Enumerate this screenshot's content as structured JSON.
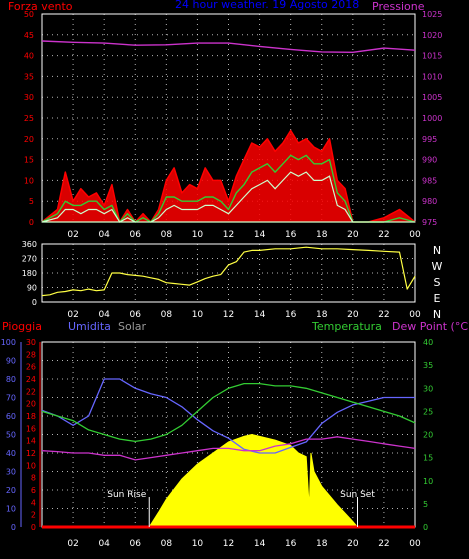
{
  "colors": {
    "background": "#000000",
    "frame": "#ffffff",
    "grid": "#ffffff",
    "pressure": "#cc33cc",
    "wind_gust": "#ff0000",
    "wind_avg": "#33cc33",
    "wind_min": "#ccffcc",
    "wind_dir": "#ffff44",
    "rain": "#ff0000",
    "humidity": "#6666ff",
    "solar": "#ffff00",
    "temperature": "#33cc33",
    "dew_point": "#cc33cc",
    "left_axis_red": "#ff0000",
    "left_axis_blue": "#6666ff",
    "right_axis_green": "#33cc33",
    "right_axis_purple": "#cc33cc",
    "top_label": "#0000ff",
    "solar_label": "#999999"
  },
  "chart_data": [
    {
      "type": "line",
      "title": "24 hour weather 19 Agosto 2018",
      "title_display": "24 hour weather. 19 Agosto 2018",
      "left_label": "Forza vento",
      "right_label": "Pressione",
      "x_ticks": [
        "02",
        "04",
        "06",
        "08",
        "10",
        "12",
        "14",
        "16",
        "18",
        "20",
        "22",
        "00"
      ],
      "x_range": [
        0,
        24
      ],
      "left_ylim": [
        0,
        50
      ],
      "left_ticks": [
        0,
        5,
        10,
        15,
        20,
        25,
        30,
        35,
        40,
        45,
        50
      ],
      "right_ylim": [
        975,
        1025
      ],
      "right_ticks": [
        975,
        980,
        985,
        990,
        995,
        1000,
        1005,
        1010,
        1015,
        1020,
        1025
      ],
      "grid": true,
      "series": [
        {
          "key": "gust",
          "axis": "left",
          "x": [
            0,
            1,
            1.5,
            2,
            2.5,
            3,
            3.5,
            4,
            4.5,
            5,
            5.5,
            6,
            6.5,
            7,
            7.5,
            8,
            8.5,
            9,
            9.5,
            10,
            10.5,
            11,
            11.5,
            12,
            12.5,
            13,
            13.5,
            14,
            14.5,
            15,
            15.5,
            16,
            16.5,
            17,
            17.5,
            18,
            18.5,
            19,
            19.5,
            20,
            21,
            22,
            23,
            24
          ],
          "y": [
            0,
            3,
            12,
            5,
            8,
            6,
            7,
            4,
            9,
            0,
            3,
            0,
            2,
            0,
            3,
            10,
            13,
            7,
            9,
            8,
            13,
            10,
            10,
            5,
            11,
            15,
            19,
            18,
            20,
            17,
            19,
            22,
            19,
            20,
            18,
            17,
            20,
            10,
            8,
            0,
            0,
            1,
            3,
            0
          ]
        },
        {
          "key": "avg",
          "axis": "left",
          "x": [
            0,
            1,
            1.5,
            2,
            2.5,
            3,
            3.5,
            4,
            4.5,
            5,
            5.5,
            6,
            6.5,
            7,
            7.5,
            8,
            8.5,
            9,
            9.5,
            10,
            10.5,
            11,
            11.5,
            12,
            12.5,
            13,
            13.5,
            14,
            14.5,
            15,
            15.5,
            16,
            16.5,
            17,
            17.5,
            18,
            18.5,
            19,
            19.5,
            20,
            21,
            22,
            23,
            24
          ],
          "y": [
            0,
            2,
            5,
            4,
            4,
            5,
            5,
            3,
            4,
            0,
            2,
            0,
            1,
            0,
            2,
            6,
            6,
            5,
            5,
            5,
            6,
            6,
            5,
            3,
            7,
            9,
            12,
            13,
            14,
            12,
            14,
            16,
            15,
            16,
            14,
            14,
            15,
            7,
            5,
            0,
            0,
            0,
            1,
            0
          ]
        },
        {
          "key": "min",
          "axis": "left",
          "x": [
            0,
            1,
            1.5,
            2,
            2.5,
            3,
            3.5,
            4,
            4.5,
            5,
            5.5,
            6,
            6.5,
            7,
            7.5,
            8,
            8.5,
            9,
            9.5,
            10,
            10.5,
            11,
            11.5,
            12,
            12.5,
            13,
            13.5,
            14,
            14.5,
            15,
            15.5,
            16,
            16.5,
            17,
            17.5,
            18,
            18.5,
            19,
            19.5,
            20,
            21,
            22,
            23,
            24
          ],
          "y": [
            0,
            1,
            3,
            3,
            2,
            3,
            3,
            2,
            3,
            0,
            1,
            0,
            0,
            0,
            1,
            3,
            4,
            3,
            3,
            3,
            4,
            4,
            3,
            2,
            4,
            6,
            8,
            9,
            10,
            8,
            10,
            12,
            11,
            12,
            10,
            10,
            11,
            4,
            3,
            0,
            0,
            0,
            0,
            0
          ]
        },
        {
          "key": "pressure",
          "axis": "right",
          "x": [
            0,
            2,
            4,
            6,
            8,
            10,
            12,
            14,
            16,
            18,
            20,
            22,
            24
          ],
          "y": [
            1018.5,
            1018.2,
            1018,
            1017.5,
            1017.6,
            1018,
            1018,
            1017.2,
            1016.5,
            1015.9,
            1015.8,
            1016.8,
            1016.3
          ]
        }
      ]
    },
    {
      "type": "scatter",
      "title": "",
      "x_ticks": [
        "02",
        "04",
        "06",
        "08",
        "10",
        "12",
        "14",
        "16",
        "18",
        "20",
        "22",
        "00"
      ],
      "x_range": [
        0,
        24
      ],
      "ylim": [
        0,
        360
      ],
      "y_ticks": [
        0,
        90,
        180,
        270,
        360
      ],
      "compass": [
        "N",
        "W",
        "S",
        "E",
        "N"
      ],
      "grid": true,
      "series": [
        {
          "key": "direction",
          "x": [
            0,
            0.5,
            1,
            1.5,
            2,
            2.5,
            3,
            3.5,
            4,
            4.5,
            5,
            5.5,
            6,
            6.5,
            7,
            7.5,
            8,
            8.5,
            9,
            9.5,
            10,
            10.5,
            11,
            11.5,
            12,
            12.5,
            13,
            13.5,
            14,
            15,
            16,
            17,
            18,
            19,
            20,
            21,
            22,
            23,
            23.5,
            24
          ],
          "y": [
            40,
            45,
            60,
            65,
            75,
            70,
            80,
            70,
            75,
            180,
            180,
            170,
            165,
            160,
            150,
            140,
            120,
            115,
            110,
            105,
            125,
            145,
            160,
            170,
            230,
            250,
            310,
            320,
            320,
            330,
            330,
            340,
            330,
            330,
            325,
            320,
            315,
            310,
            80,
            160
          ]
        }
      ]
    },
    {
      "type": "area",
      "title": "",
      "labels": {
        "rain": "Pioggia",
        "humidity": "Umidita",
        "solar": "Solar",
        "temperature": "Temperatura",
        "dew": "Dew Point (°C)",
        "sunrise": "Sun Rise",
        "sunset": "Sun Set"
      },
      "x_ticks": [
        "02",
        "04",
        "06",
        "08",
        "10",
        "12",
        "14",
        "16",
        "18",
        "20",
        "22",
        "00"
      ],
      "x_range": [
        0,
        24
      ],
      "left_red_ticks": [
        0,
        2,
        4,
        6,
        8,
        10,
        12,
        14,
        16,
        18,
        20,
        22,
        24,
        26,
        28,
        30
      ],
      "left_red_ylim": [
        0,
        30
      ],
      "left_blue_ticks": [
        0,
        10,
        20,
        30,
        40,
        50,
        60,
        70,
        80,
        90,
        100
      ],
      "left_blue_ylim": [
        0,
        100
      ],
      "right_ticks": [
        0,
        5,
        10,
        15,
        20,
        25,
        30,
        35,
        40
      ],
      "right_ylim": [
        0,
        40
      ],
      "sunrise_x": 6.9,
      "sunset_x": 20.3,
      "grid": true,
      "series": [
        {
          "key": "rain",
          "axis": "left_red",
          "x": [
            0,
            24
          ],
          "y": [
            0,
            0
          ]
        },
        {
          "key": "humidity",
          "axis": "left_blue",
          "x": [
            0,
            1,
            2,
            3,
            4,
            5,
            6,
            7,
            8,
            9,
            10,
            11,
            12,
            13,
            14,
            15,
            16,
            17,
            18,
            19,
            20,
            21,
            22,
            23,
            24
          ],
          "y": [
            63,
            60,
            55,
            60,
            80,
            80,
            75,
            72,
            70,
            65,
            58,
            52,
            48,
            42,
            40,
            40,
            43,
            46,
            56,
            62,
            66,
            68,
            70,
            70,
            70
          ]
        },
        {
          "key": "solar",
          "axis": "left_blue",
          "x": [
            6.9,
            7.5,
            8,
            9,
            10,
            11,
            12,
            13,
            13.5,
            14,
            15,
            16,
            16.5,
            17,
            17.2,
            17.3,
            17.5,
            18,
            19,
            20,
            20.3
          ],
          "y": [
            0,
            8,
            15,
            26,
            34,
            40,
            46,
            49,
            50,
            49,
            47,
            44,
            40,
            38,
            10,
            40,
            30,
            22,
            12,
            3,
            0
          ]
        },
        {
          "key": "temperature",
          "axis": "right",
          "x": [
            0,
            1,
            2,
            3,
            4,
            5,
            6,
            7,
            8,
            9,
            10,
            11,
            12,
            13,
            14,
            15,
            16,
            17,
            18,
            19,
            20,
            21,
            22,
            23,
            24
          ],
          "y": [
            25,
            24,
            23,
            21,
            20,
            19,
            18.5,
            19,
            20,
            22,
            25,
            28,
            30,
            31,
            31,
            30.5,
            30.5,
            30,
            29,
            28,
            27,
            26,
            25,
            24,
            22.5
          ]
        },
        {
          "key": "dew",
          "axis": "right",
          "x": [
            0,
            1,
            2,
            3,
            4,
            5,
            6,
            7,
            8,
            9,
            10,
            11,
            12,
            13,
            14,
            15,
            16,
            17,
            18,
            19,
            20,
            21,
            22,
            23,
            24
          ],
          "y": [
            16.5,
            16.3,
            16,
            16,
            15.5,
            15.5,
            14.5,
            15,
            15.5,
            16,
            16.5,
            17,
            17,
            16.5,
            16.5,
            17.5,
            18,
            19,
            19,
            19.5,
            19,
            18.5,
            18,
            17.5,
            17
          ]
        }
      ]
    }
  ]
}
